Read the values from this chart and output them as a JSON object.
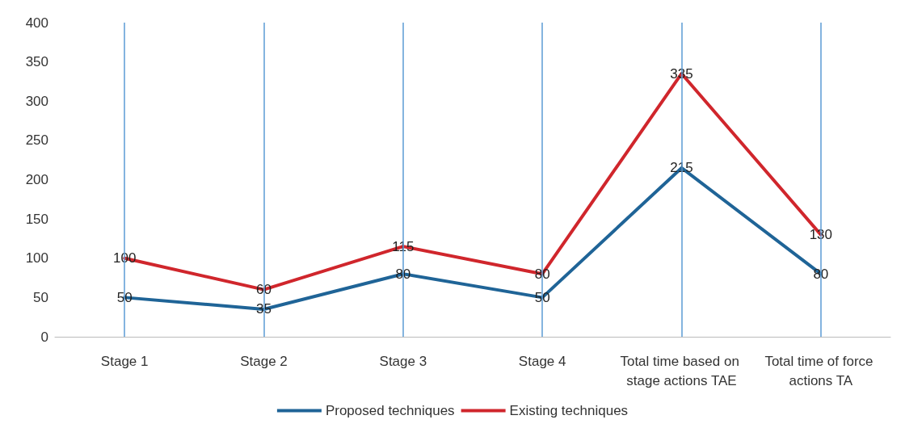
{
  "chart_data": {
    "type": "line",
    "categories": [
      "Stage 1",
      "Stage 2",
      "Stage 3",
      "Stage 4",
      "Total time based on stage actions TAE",
      "Total time of force actions TA"
    ],
    "series": [
      {
        "name": "Proposed techniques",
        "color": "#1f6497",
        "values": [
          50,
          35,
          80,
          50,
          215,
          80
        ]
      },
      {
        "name": "Existing techniques",
        "color": "#d0262c",
        "values": [
          100,
          60,
          115,
          80,
          335,
          130
        ]
      }
    ],
    "ylim": [
      0,
      400
    ],
    "yticks": [
      0,
      50,
      100,
      150,
      200,
      250,
      300,
      350,
      400
    ],
    "grid": "x",
    "legend": "bottom",
    "data_labels": true,
    "marker": "none",
    "line_style": "solid"
  }
}
